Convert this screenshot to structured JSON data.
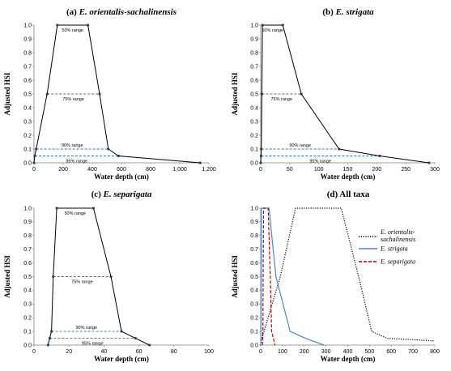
{
  "chart_data": [
    {
      "type": "line",
      "panel": "(a)",
      "title_prefix": "(a)",
      "title": "E. orientalis-sachalinensis",
      "xlabel": "Water depth (cm)",
      "ylabel": "Adjusted HSI",
      "xlim": [
        0,
        1200
      ],
      "ylim": [
        0,
        1.0
      ],
      "xticks": [
        0,
        200,
        400,
        600,
        800,
        1000,
        1200
      ],
      "xtick_labels": [
        "0",
        "200",
        "400",
        "600",
        "800",
        "1,000",
        "1,200"
      ],
      "yticks": [
        0,
        0.1,
        0.2,
        0.3,
        0.4,
        0.5,
        0.6,
        0.7,
        0.8,
        0.9,
        1.0
      ],
      "ytick_labels": [
        "0.0",
        "0.1",
        "0.2",
        "0.3",
        "0.4",
        "0.5",
        "0.6",
        "0.7",
        "0.8",
        "0.9",
        "1.0"
      ],
      "series": [
        {
          "x": [
            0,
            5,
            15,
            90,
            160,
            370,
            450,
            510,
            580,
            1140
          ],
          "y": [
            0,
            0.05,
            0.1,
            0.5,
            1.0,
            1.0,
            0.5,
            0.1,
            0.05,
            0
          ]
        }
      ],
      "ranges": [
        {
          "label": "50% range",
          "y": 1.0,
          "x0": 160,
          "x1": 370
        },
        {
          "label": "75% range",
          "y": 0.5,
          "x0": 90,
          "x1": 450
        },
        {
          "label": "90% range",
          "y": 0.1,
          "x0": 15,
          "x1": 510
        },
        {
          "label": "95% range",
          "y": 0.05,
          "x0": 5,
          "x1": 580
        }
      ],
      "grid": false
    },
    {
      "type": "line",
      "panel": "(b)",
      "title_prefix": "(b)",
      "title": "E. strigata",
      "xlabel": "Water depth (cm)",
      "ylabel": "Adjusted HSI",
      "xlim": [
        0,
        300
      ],
      "ylim": [
        0,
        1.0
      ],
      "xticks": [
        0,
        50,
        100,
        150,
        200,
        250,
        300
      ],
      "xtick_labels": [
        "0",
        "50",
        "100",
        "150",
        "200",
        "250",
        "300"
      ],
      "yticks": [
        0,
        0.1,
        0.2,
        0.3,
        0.4,
        0.5,
        0.6,
        0.7,
        0.8,
        0.9,
        1.0
      ],
      "ytick_labels": [
        "0.0",
        "0.1",
        "0.2",
        "0.3",
        "0.4",
        "0.5",
        "0.6",
        "0.7",
        "0.8",
        "0.9",
        "1.0"
      ],
      "series": [
        {
          "x": [
            0,
            0.5,
            1,
            2,
            3,
            38,
            70,
            135,
            205,
            290
          ],
          "y": [
            0,
            0.05,
            0.1,
            0.5,
            1.0,
            1.0,
            0.5,
            0.1,
            0.05,
            0
          ]
        }
      ],
      "ranges": [
        {
          "label": "50% range",
          "y": 1.0,
          "x0": 3,
          "x1": 38
        },
        {
          "label": "75% range",
          "y": 0.5,
          "x0": 2,
          "x1": 70
        },
        {
          "label": "90% range",
          "y": 0.1,
          "x0": 1,
          "x1": 135
        },
        {
          "label": "95% range",
          "y": 0.05,
          "x0": 0.5,
          "x1": 205
        }
      ],
      "grid": false
    },
    {
      "type": "line",
      "panel": "(c)",
      "title_prefix": "(c)",
      "title": "E. separigata",
      "xlabel": "Water depth (cm)",
      "ylabel": "Adjusted HSI",
      "xlim": [
        0,
        100
      ],
      "ylim": [
        0,
        1.0
      ],
      "xticks": [
        0,
        20,
        40,
        60,
        80,
        100
      ],
      "xtick_labels": [
        "0",
        "20",
        "40",
        "60",
        "80",
        "100"
      ],
      "yticks": [
        0,
        0.1,
        0.2,
        0.3,
        0.4,
        0.5,
        0.6,
        0.7,
        0.8,
        0.9,
        1.0
      ],
      "ytick_labels": [
        "0.0",
        "0.1",
        "0.2",
        "0.3",
        "0.4",
        "0.5",
        "0.6",
        "0.7",
        "0.8",
        "0.9",
        "1.0"
      ],
      "series": [
        {
          "x": [
            8,
            9,
            10,
            11,
            13,
            34,
            44,
            50,
            58,
            66
          ],
          "y": [
            0,
            0.05,
            0.1,
            0.5,
            1.0,
            1.0,
            0.5,
            0.1,
            0.05,
            0
          ]
        }
      ],
      "ranges": [
        {
          "label": "50% range",
          "y": 1.0,
          "x0": 13,
          "x1": 34
        },
        {
          "label": "75% range",
          "y": 0.5,
          "x0": 11,
          "x1": 44
        },
        {
          "label": "90% range",
          "y": 0.1,
          "x0": 10,
          "x1": 50
        },
        {
          "label": "95% range",
          "y": 0.05,
          "x0": 9,
          "x1": 58
        }
      ],
      "grid": false
    },
    {
      "type": "line",
      "panel": "(d)",
      "title_prefix": "(d)",
      "title": "All taxa",
      "xlabel": "Water depth (cm)",
      "ylabel": "Adjusted HSI",
      "xlim": [
        0,
        800
      ],
      "ylim": [
        0,
        1.0
      ],
      "xticks": [
        0,
        100,
        200,
        300,
        400,
        500,
        600,
        700,
        800
      ],
      "xtick_labels": [
        "0",
        "100",
        "200",
        "300",
        "400",
        "500",
        "600",
        "700",
        "800"
      ],
      "yticks": [
        0,
        0.1,
        0.2,
        0.3,
        0.4,
        0.5,
        0.6,
        0.7,
        0.8,
        0.9,
        1.0
      ],
      "ytick_labels": [
        "0.0",
        "0.1",
        "0.2",
        "0.3",
        "0.4",
        "0.5",
        "0.6",
        "0.7",
        "0.8",
        "0.9",
        "1.0"
      ],
      "series": [
        {
          "name": "E. orientalis-sachalinensis",
          "name_lines": [
            "E. orientalis-",
            "sachalinensis"
          ],
          "color": "#000000",
          "dash": "dotted",
          "x": [
            0,
            5,
            15,
            90,
            160,
            370,
            450,
            510,
            580,
            800
          ],
          "y": [
            0,
            0.05,
            0.1,
            0.5,
            1.0,
            1.0,
            0.5,
            0.1,
            0.05,
            0.03
          ]
        },
        {
          "name": "E. strigata",
          "name_lines": [
            "E. strigata"
          ],
          "color": "#4a86c8",
          "dash": "solid",
          "x": [
            0,
            0.5,
            1,
            2,
            3,
            38,
            70,
            135,
            205,
            290
          ],
          "y": [
            0,
            0.05,
            0.1,
            0.5,
            1.0,
            1.0,
            0.5,
            0.1,
            0.05,
            0
          ]
        },
        {
          "name": "E. separigata",
          "name_lines": [
            "E. separigata"
          ],
          "color": "#c00000",
          "dash": "dashed",
          "x": [
            8,
            9,
            10,
            11,
            13,
            34,
            44,
            50,
            58,
            66
          ],
          "y": [
            0,
            0.05,
            0.1,
            0.5,
            1.0,
            1.0,
            0.5,
            0.1,
            0.05,
            0
          ]
        }
      ],
      "legend": "right",
      "grid": false
    }
  ]
}
